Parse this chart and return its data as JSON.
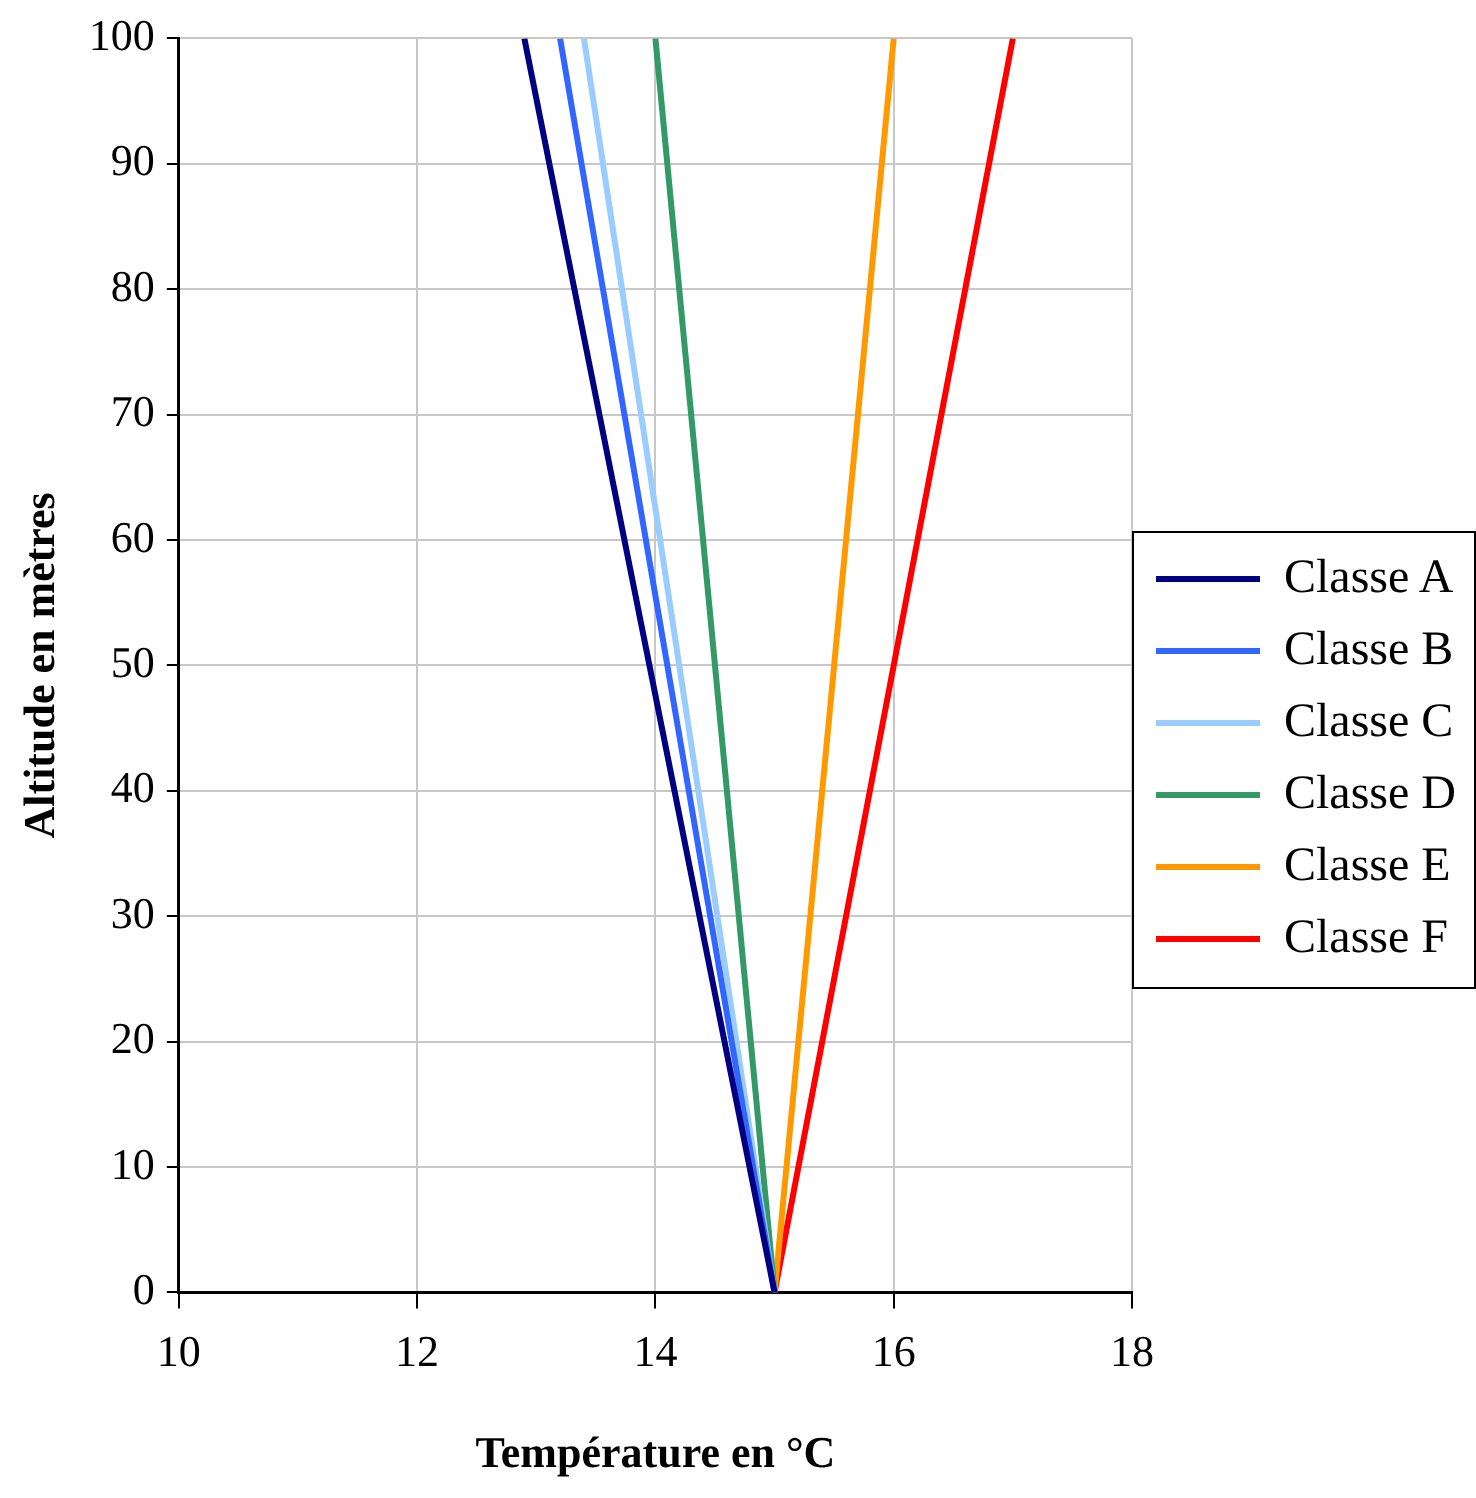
{
  "chart_data": {
    "type": "line",
    "xlabel": "Température en °C",
    "ylabel": "Altitude en mètres",
    "xlim": [
      10,
      18
    ],
    "xticks": [
      10,
      12,
      14,
      16,
      18
    ],
    "ylim": [
      0,
      100
    ],
    "yticks": [
      0,
      10,
      20,
      30,
      40,
      50,
      60,
      70,
      80,
      90,
      100
    ],
    "grid": true,
    "legend": "right",
    "marker": "none",
    "line_style": "solid",
    "series": [
      {
        "name": "Classe A",
        "color": "#000080",
        "x": [
          15,
          12.9
        ],
        "values": [
          0,
          100
        ]
      },
      {
        "name": "Classe B",
        "color": "#3366ff",
        "x": [
          15,
          13.2
        ],
        "values": [
          0,
          100
        ]
      },
      {
        "name": "Classe C",
        "color": "#99ccff",
        "x": [
          15,
          13.4
        ],
        "values": [
          0,
          100
        ]
      },
      {
        "name": "Classe D",
        "color": "#339966",
        "x": [
          15,
          14.0
        ],
        "values": [
          0,
          100
        ]
      },
      {
        "name": "Classe E",
        "color": "#ff9900",
        "x": [
          15,
          16.0
        ],
        "values": [
          0,
          100
        ]
      },
      {
        "name": "Classe F",
        "color": "#ff0000",
        "x": [
          15,
          17.0
        ],
        "values": [
          0,
          100
        ]
      }
    ]
  }
}
